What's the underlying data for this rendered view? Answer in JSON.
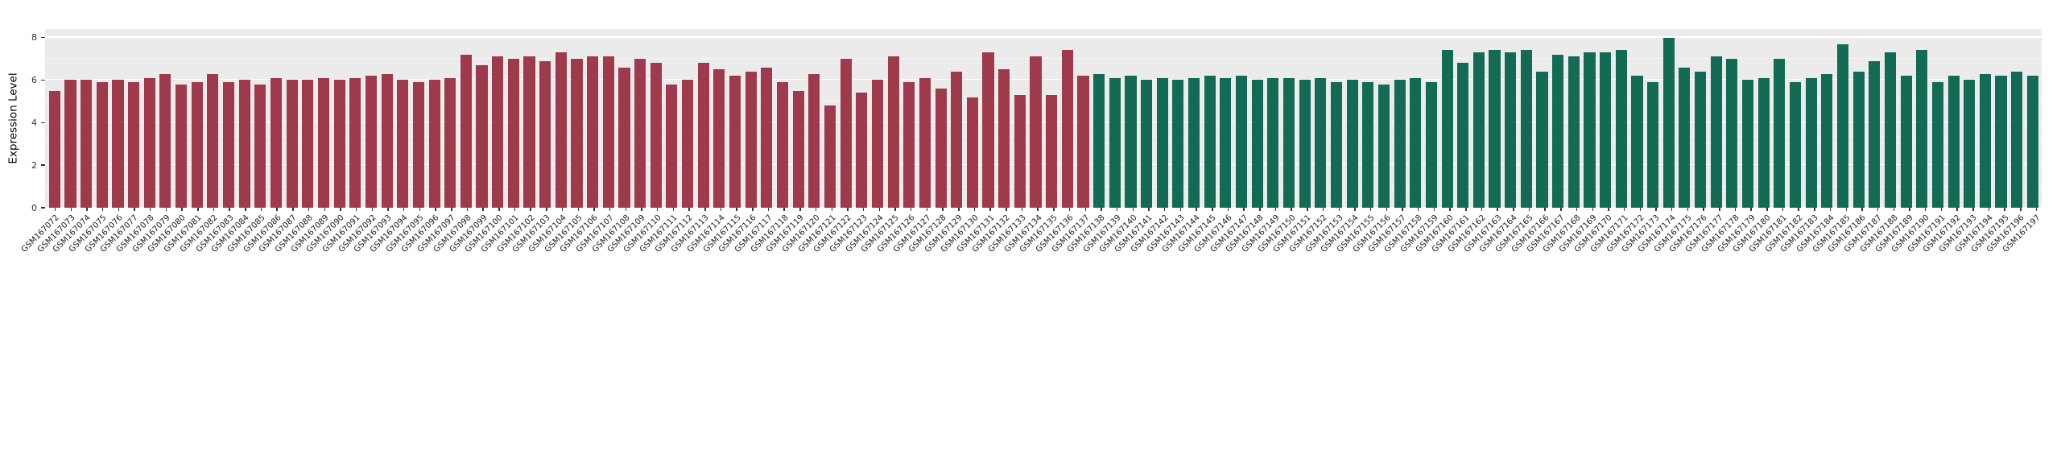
{
  "figure": {
    "background": "#ffffff",
    "panel_background": "#ebebeb"
  },
  "chart_data": {
    "type": "bar",
    "title": "",
    "xlabel": "",
    "ylabel": "Expression Level",
    "ylim": [
      0,
      8.4
    ],
    "yticks": [
      0,
      2,
      4,
      6,
      8
    ],
    "yticks_minor": [
      1,
      3,
      5,
      7
    ],
    "grid": "white-on-gray",
    "legend": "none",
    "group_split_index": 66,
    "colors": {
      "group1": "#9e3a4b",
      "group2": "#136b55"
    },
    "categories": [
      "GSM167072",
      "GSM167073",
      "GSM167074",
      "GSM167075",
      "GSM167076",
      "GSM167077",
      "GSM167078",
      "GSM167079",
      "GSM167080",
      "GSM167081",
      "GSM167082",
      "GSM167083",
      "GSM167084",
      "GSM167085",
      "GSM167086",
      "GSM167087",
      "GSM167088",
      "GSM167089",
      "GSM167090",
      "GSM167091",
      "GSM167092",
      "GSM167093",
      "GSM167094",
      "GSM167095",
      "GSM167096",
      "GSM167097",
      "GSM167098",
      "GSM167099",
      "GSM167100",
      "GSM167101",
      "GSM167102",
      "GSM167103",
      "GSM167104",
      "GSM167105",
      "GSM167106",
      "GSM167107",
      "GSM167108",
      "GSM167109",
      "GSM167110",
      "GSM167111",
      "GSM167112",
      "GSM167113",
      "GSM167114",
      "GSM167115",
      "GSM167116",
      "GSM167117",
      "GSM167118",
      "GSM167119",
      "GSM167120",
      "GSM167121",
      "GSM167122",
      "GSM167123",
      "GSM167124",
      "GSM167125",
      "GSM167126",
      "GSM167127",
      "GSM167128",
      "GSM167129",
      "GSM167130",
      "GSM167131",
      "GSM167132",
      "GSM167133",
      "GSM167134",
      "GSM167135",
      "GSM167136",
      "GSM167137",
      "GSM167138",
      "GSM167139",
      "GSM167140",
      "GSM167141",
      "GSM167142",
      "GSM167143",
      "GSM167144",
      "GSM167145",
      "GSM167146",
      "GSM167147",
      "GSM167148",
      "GSM167149",
      "GSM167150",
      "GSM167151",
      "GSM167152",
      "GSM167153",
      "GSM167154",
      "GSM167155",
      "GSM167156",
      "GSM167157",
      "GSM167158",
      "GSM167159",
      "GSM167160",
      "GSM167161",
      "GSM167162",
      "GSM167163",
      "GSM167164",
      "GSM167165",
      "GSM167166",
      "GSM167167",
      "GSM167168",
      "GSM167169",
      "GSM167170",
      "GSM167171",
      "GSM167172",
      "GSM167173",
      "GSM167174",
      "GSM167175",
      "GSM167176",
      "GSM167177",
      "GSM167178",
      "GSM167179",
      "GSM167180",
      "GSM167181",
      "GSM167182",
      "GSM167183",
      "GSM167184",
      "GSM167185",
      "GSM167186",
      "GSM167187",
      "GSM167188",
      "GSM167189",
      "GSM167190",
      "GSM167191",
      "GSM167192",
      "GSM167193",
      "GSM167194",
      "GSM167195",
      "GSM167196",
      "GSM167197"
    ],
    "values": [
      5.5,
      6.0,
      6.0,
      5.9,
      6.0,
      5.9,
      6.1,
      6.3,
      5.8,
      5.9,
      6.3,
      5.9,
      6.0,
      5.8,
      6.1,
      6.0,
      6.0,
      6.1,
      6.0,
      6.1,
      6.2,
      6.3,
      6.0,
      5.9,
      6.0,
      6.1,
      7.2,
      6.7,
      7.1,
      7.0,
      7.1,
      6.9,
      7.3,
      7.0,
      7.1,
      7.1,
      6.6,
      7.0,
      6.8,
      5.8,
      6.0,
      6.8,
      6.5,
      6.2,
      6.4,
      6.6,
      5.9,
      5.5,
      6.3,
      4.8,
      7.0,
      5.4,
      6.0,
      7.1,
      5.9,
      6.1,
      5.6,
      6.4,
      5.2,
      7.3,
      6.5,
      5.3,
      7.1,
      5.3,
      7.4,
      6.2,
      6.3,
      6.1,
      6.2,
      6.0,
      6.1,
      6.0,
      6.1,
      6.2,
      6.1,
      6.2,
      6.0,
      6.1,
      6.1,
      6.0,
      6.1,
      5.9,
      6.0,
      5.9,
      5.8,
      6.0,
      6.1,
      5.9,
      7.4,
      6.8,
      7.3,
      7.4,
      7.3,
      7.4,
      6.4,
      7.2,
      7.1,
      7.3,
      7.3,
      7.4,
      6.2,
      5.9,
      8.0,
      6.6,
      6.4,
      7.1,
      7.0,
      6.0,
      6.1,
      7.0,
      5.9,
      6.1,
      6.3,
      7.7,
      6.4,
      6.9,
      7.3,
      6.2,
      7.4,
      5.9,
      6.2,
      6.0,
      6.3,
      6.2,
      6.4,
      6.2
    ]
  }
}
